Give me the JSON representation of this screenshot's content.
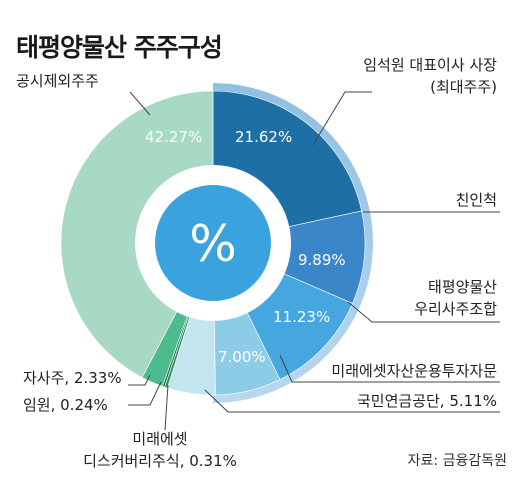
{
  "chart_data": {
    "type": "pie",
    "title": "태평양물산 주주구성",
    "center_label": "%",
    "source": "자료: 금융감독원",
    "slices": [
      {
        "label": "임석원 대표이사 사장\n(최대주주)",
        "value": 21.62,
        "value_label": "21.62%",
        "color": "#1d6fa5"
      },
      {
        "label": "친인척",
        "value": 9.89,
        "value_label": "9.89%",
        "color": "#3a86c8"
      },
      {
        "label": "태평양물산\n우리사주조합",
        "value": 11.23,
        "value_label": "11.23%",
        "color": "#46a6e0"
      },
      {
        "label": "미래에셋자산운용투자자문",
        "value": 7.0,
        "value_label": "7.00%",
        "color": "#8dcce6"
      },
      {
        "label": "국민연금공단, 5.11%",
        "value": 5.11,
        "value_label": "",
        "color": "#c2e5f0"
      },
      {
        "label": "미래에셋\n디스커버리주식, 0.31%",
        "value": 0.31,
        "value_label": "",
        "color": "#2f8f60"
      },
      {
        "label": "임원, 0.24%",
        "value": 0.24,
        "value_label": "",
        "color": "#237a52"
      },
      {
        "label": "자사주, 2.33%",
        "value": 2.33,
        "value_label": "",
        "color": "#4dbb8e"
      },
      {
        "label": "공시제외주주",
        "value": 42.27,
        "value_label": "42.27%",
        "color": "#a7d9c5"
      }
    ]
  }
}
